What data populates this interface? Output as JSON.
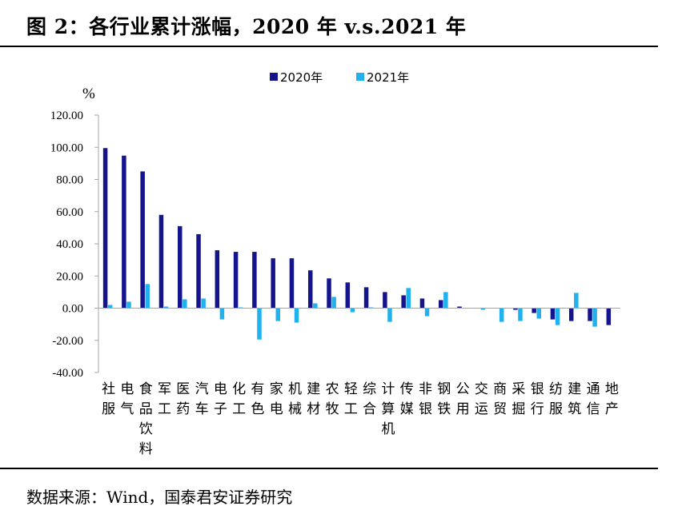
{
  "header": {
    "title": "图 2：各行业累计涨幅，2020 年 v.s.2021 年"
  },
  "footer": {
    "source": "数据来源：Wind，国泰君安证券研究"
  },
  "colors": {
    "series_2020": "#14148c",
    "series_2021": "#21b1ec",
    "axis": "#a6a6a6"
  },
  "chart_data": {
    "type": "bar",
    "title": "",
    "ylabel": "%",
    "xlabel": "",
    "ylim": [
      -40,
      120
    ],
    "yticks": [
      120,
      100,
      80,
      60,
      40,
      20,
      0,
      -20,
      -40
    ],
    "ytick_labels": [
      "120.00",
      "100.00",
      "80.00",
      "60.00",
      "40.00",
      "20.00",
      "0.00",
      "-20.00",
      "-40.00"
    ],
    "grid": false,
    "legend_position": "top-center",
    "categories": [
      "社服",
      "电气",
      "食品饮料",
      "军工",
      "医药",
      "汽车",
      "电子",
      "化工",
      "有色",
      "家电",
      "机械",
      "建材",
      "农牧",
      "轻工",
      "综合",
      "计算机",
      "传媒",
      "非银",
      "钢铁",
      "公用",
      "交运",
      "商贸",
      "采掘",
      "银行",
      "纺服",
      "建筑",
      "通信",
      "地产"
    ],
    "series": [
      {
        "name": "2020年",
        "values": [
          99.5,
          94.8,
          85.0,
          58.0,
          51.0,
          46.0,
          36.0,
          35.0,
          35.0,
          31.0,
          31.0,
          23.5,
          18.5,
          16.0,
          13.0,
          10.0,
          8.0,
          6.0,
          5.0,
          1.0,
          0,
          0,
          -1.0,
          -3.0,
          -7.0,
          -8.0,
          -8.0,
          -10.5
        ]
      },
      {
        "name": "2021年",
        "values": [
          2.0,
          4.0,
          15.0,
          1.0,
          5.5,
          6.0,
          -7.0,
          0.5,
          -19.5,
          -8.0,
          -9.0,
          3.0,
          7.0,
          -2.5,
          0.5,
          -8.5,
          12.5,
          -5.0,
          10.0,
          0,
          -1.0,
          -8.5,
          -8.0,
          -6.5,
          -10.5,
          9.5,
          -11.5,
          0
        ]
      }
    ]
  }
}
